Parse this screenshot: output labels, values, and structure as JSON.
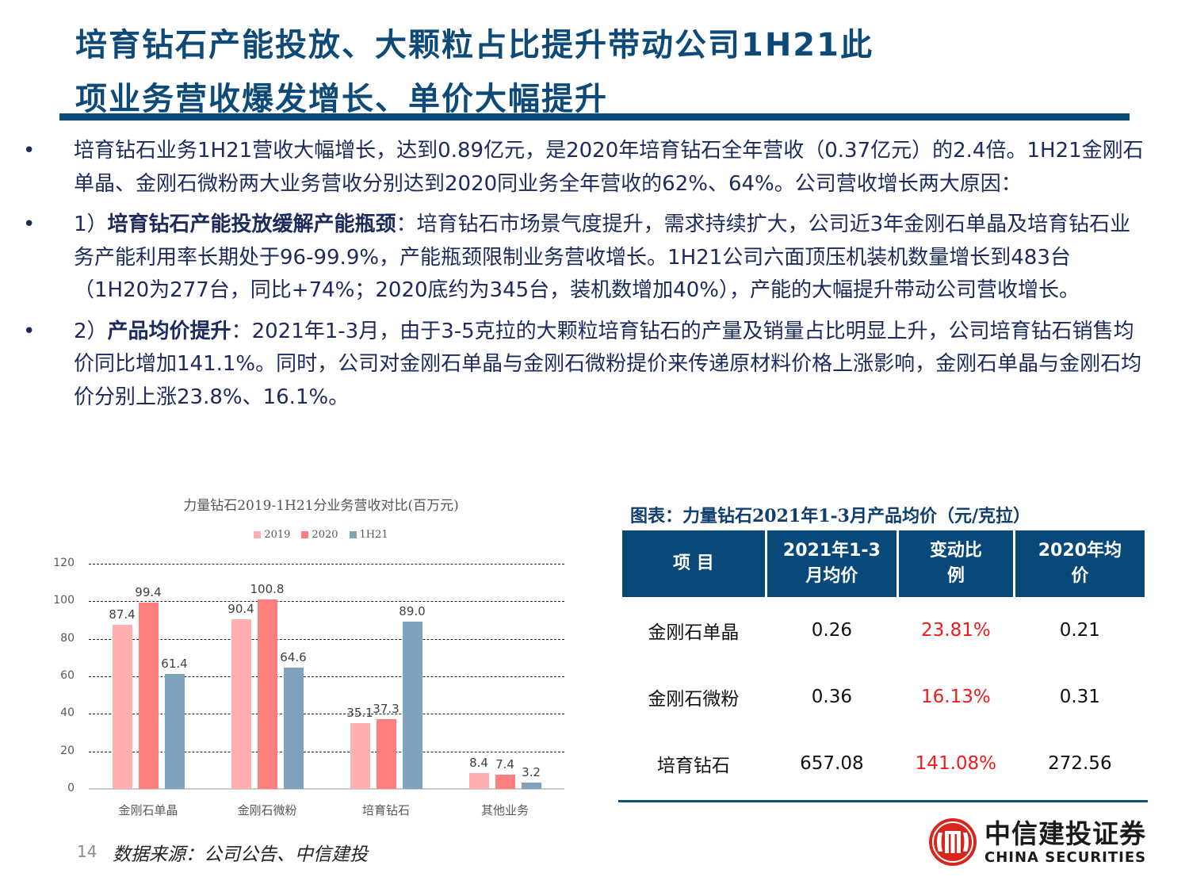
{
  "header": {
    "title_line1": "培育钻石产能投放、大颗粒占比提升带动公司1H21此",
    "title_line2": "项业务营收爆发增长、单价大幅提升"
  },
  "bullets": [
    {
      "marker": "•",
      "bold": "",
      "text": "培育钻石业务1H21营收大幅增长，达到0.89亿元，是2020年培育钻石全年营收（0.37亿元）的2.4倍。1H21金刚石单晶、金刚石微粉两大业务营收分别达到2020同业务全年营收的62%、64%。公司营收增长两大原因："
    },
    {
      "marker": "•",
      "prefix": "1）",
      "bold": "培育钻石产能投放缓解产能瓶颈",
      "text": "：培育钻石市场景气度提升，需求持续扩大，公司近3年金刚石单晶及培育钻石业务产能利用率长期处于96-99.9%，产能瓶颈限制业务营收增长。1H21公司六面顶压机装机数量增长到483台（1H20为277台，同比+74%；2020底约为345台，装机数增加40%），产能的大幅提升带动公司营收增长。"
    },
    {
      "marker": "•",
      "prefix": "2）",
      "bold": "产品均价提升",
      "text": "：2021年1-3月，由于3-5克拉的大颗粒培育钻石的产量及销量占比明显上升，公司培育钻石销售均价同比增加141.1%。同时，公司对金刚石单晶与金刚石微粉提价来传递原材料价格上涨影响，金刚石单晶与金刚石均价分别上涨23.8%、16.1%。"
    }
  ],
  "chart_data": {
    "type": "bar",
    "title": "力量钻石2019-1H21分业务营收对比(百万元)",
    "xlabel": "",
    "ylabel": "",
    "ylim": [
      0,
      120
    ],
    "yticks": [
      0,
      20,
      40,
      60,
      80,
      100,
      120
    ],
    "grid": true,
    "legend_position": "top",
    "categories": [
      "金刚石单晶",
      "金刚石微粉",
      "培育钻石",
      "其他业务"
    ],
    "series": [
      {
        "name": "2019",
        "color": "#ffb0b0",
        "values": [
          87.4,
          90.4,
          35.1,
          8.4
        ]
      },
      {
        "name": "2020",
        "color": "#ff7f7f",
        "values": [
          99.4,
          100.8,
          37.3,
          7.4
        ]
      },
      {
        "name": "1H21",
        "color": "#7fa3bd",
        "values": [
          61.4,
          64.6,
          89.0,
          3.2
        ]
      }
    ]
  },
  "price_table": {
    "caption": "图表：力量钻石2021年1-3月产品均价（元/克拉）",
    "headers": [
      "项目",
      "2021年1-3月均价",
      "变动比例",
      "2020年均价"
    ],
    "header_lines": [
      [
        "项 目"
      ],
      [
        "2021年1-3",
        "月均价"
      ],
      [
        "变动比",
        "例"
      ],
      [
        "2020年均",
        "价"
      ]
    ],
    "rows": [
      {
        "item": "金刚石单晶",
        "price_2021q1": "0.26",
        "change": "23.81%",
        "price_2020": "0.21"
      },
      {
        "item": "金刚石微粉",
        "price_2021q1": "0.36",
        "change": "16.13%",
        "price_2020": "0.31"
      },
      {
        "item": "培育钻石",
        "price_2021q1": "657.08",
        "change": "141.08%",
        "price_2020": "272.56"
      }
    ],
    "header_bg": "#08497a",
    "change_color": "#ee1c1c"
  },
  "footer": {
    "page_number": "14",
    "source": "数据来源：公司公告、中信建投",
    "logo_cn": "中信建投证券",
    "logo_en": "CHINA SECURITIES",
    "logo_color": "#d7261e"
  },
  "colors": {
    "title": "#0e4a78",
    "divider": "#0a4a78",
    "body_text": "#1c2a5c"
  }
}
